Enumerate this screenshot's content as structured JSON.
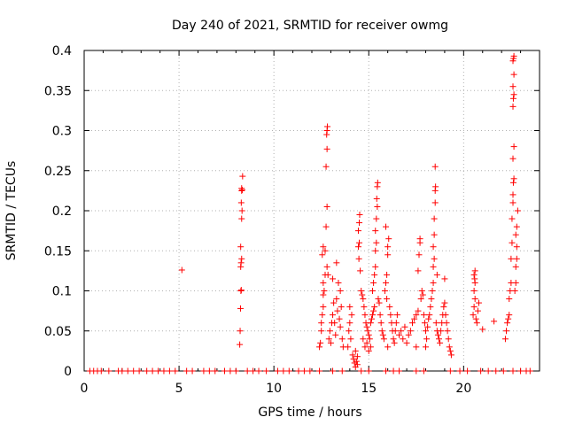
{
  "chart_data": {
    "type": "scatter",
    "title": "Day 240 of 2021, SRMTID for receiver owmg",
    "xlabel": "GPS time / hours",
    "ylabel": "SRMTID / TECUs",
    "xlim": [
      0,
      24
    ],
    "ylim": [
      0,
      0.4
    ],
    "xticks": [
      0,
      5,
      10,
      15,
      20
    ],
    "xtick_labels": [
      "0",
      "5",
      "10",
      "15",
      "20"
    ],
    "yticks": [
      0,
      0.05,
      0.1,
      0.15,
      0.2,
      0.25,
      0.3,
      0.35,
      0.4
    ],
    "ytick_labels": [
      "0",
      "0.05",
      "0.1",
      "0.15",
      "0.2",
      "0.25",
      "0.3",
      "0.35",
      "0.4"
    ],
    "grid": true,
    "marker": "+",
    "marker_color": "#ff0000",
    "series": [
      {
        "name": "owmg",
        "points": [
          [
            0.3,
            0
          ],
          [
            0.5,
            0
          ],
          [
            0.7,
            0
          ],
          [
            0.9,
            0
          ],
          [
            1.3,
            0
          ],
          [
            1.8,
            0
          ],
          [
            2.0,
            0
          ],
          [
            2.3,
            0
          ],
          [
            2.6,
            0
          ],
          [
            2.9,
            0
          ],
          [
            3.3,
            0
          ],
          [
            3.6,
            0
          ],
          [
            3.9,
            0
          ],
          [
            4.2,
            0
          ],
          [
            4.5,
            0
          ],
          [
            4.8,
            0
          ],
          [
            5.4,
            0
          ],
          [
            5.7,
            0
          ],
          [
            6.3,
            0
          ],
          [
            6.6,
            0
          ],
          [
            6.9,
            0
          ],
          [
            7.4,
            0
          ],
          [
            7.7,
            0
          ],
          [
            8.0,
            0
          ],
          [
            8.6,
            0
          ],
          [
            8.9,
            0
          ],
          [
            9.2,
            0
          ],
          [
            9.6,
            0
          ],
          [
            10.2,
            0
          ],
          [
            10.5,
            0
          ],
          [
            10.8,
            0
          ],
          [
            11.3,
            0
          ],
          [
            11.6,
            0
          ],
          [
            11.9,
            0
          ],
          [
            12.4,
            0
          ],
          [
            13.1,
            0
          ],
          [
            13.6,
            0
          ],
          [
            14.6,
            0
          ],
          [
            15.0,
            0
          ],
          [
            15.9,
            0
          ],
          [
            16.3,
            0
          ],
          [
            16.6,
            0
          ],
          [
            17.5,
            0
          ],
          [
            17.9,
            0
          ],
          [
            19.3,
            0
          ],
          [
            19.8,
            0
          ],
          [
            20.2,
            0
          ],
          [
            20.9,
            0
          ],
          [
            21.3,
            0
          ],
          [
            21.7,
            0
          ],
          [
            22.1,
            0
          ],
          [
            22.6,
            0
          ],
          [
            23.0,
            0
          ],
          [
            23.3,
            0
          ],
          [
            23.5,
            0
          ],
          [
            5.15,
            0.126
          ],
          [
            8.2,
            0.033
          ],
          [
            8.22,
            0.05
          ],
          [
            8.24,
            0.078
          ],
          [
            8.26,
            0.1
          ],
          [
            8.28,
            0.101
          ],
          [
            8.25,
            0.13
          ],
          [
            8.27,
            0.135
          ],
          [
            8.3,
            0.14
          ],
          [
            8.25,
            0.155
          ],
          [
            8.3,
            0.19
          ],
          [
            8.32,
            0.2
          ],
          [
            8.28,
            0.21
          ],
          [
            8.3,
            0.225
          ],
          [
            8.33,
            0.226
          ],
          [
            8.3,
            0.228
          ],
          [
            8.35,
            0.243
          ],
          [
            12.4,
            0.03
          ],
          [
            12.45,
            0.035
          ],
          [
            12.5,
            0.05
          ],
          [
            12.5,
            0.06
          ],
          [
            12.55,
            0.07
          ],
          [
            12.6,
            0.08
          ],
          [
            12.6,
            0.095
          ],
          [
            12.65,
            0.1
          ],
          [
            12.6,
            0.11
          ],
          [
            12.7,
            0.12
          ],
          [
            12.55,
            0.145
          ],
          [
            12.6,
            0.155
          ],
          [
            12.7,
            0.15
          ],
          [
            12.8,
            0.13
          ],
          [
            12.85,
            0.12
          ],
          [
            12.75,
            0.18
          ],
          [
            12.8,
            0.205
          ],
          [
            12.75,
            0.255
          ],
          [
            12.8,
            0.277
          ],
          [
            12.78,
            0.295
          ],
          [
            12.8,
            0.3
          ],
          [
            12.82,
            0.305
          ],
          [
            12.9,
            0.04
          ],
          [
            12.95,
            0.05
          ],
          [
            13.0,
            0.035
          ],
          [
            13.05,
            0.06
          ],
          [
            13.1,
            0.07
          ],
          [
            13.15,
            0.085
          ],
          [
            13.2,
            0.06
          ],
          [
            13.25,
            0.045
          ],
          [
            13.3,
            0.09
          ],
          [
            13.35,
            0.075
          ],
          [
            13.4,
            0.11
          ],
          [
            13.45,
            0.065
          ],
          [
            13.5,
            0.055
          ],
          [
            13.5,
            0.1
          ],
          [
            13.55,
            0.08
          ],
          [
            13.6,
            0.04
          ],
          [
            13.65,
            0.03
          ],
          [
            13.1,
            0.115
          ],
          [
            13.3,
            0.135
          ],
          [
            13.9,
            0.03
          ],
          [
            13.95,
            0.05
          ],
          [
            14.0,
            0.06
          ],
          [
            14.05,
            0.04
          ],
          [
            14.1,
            0.07
          ],
          [
            14.0,
            0.08
          ],
          [
            14.15,
            0.02
          ],
          [
            14.2,
            0.015
          ],
          [
            14.25,
            0.01
          ],
          [
            14.3,
            0.005
          ],
          [
            14.35,
            0.012
          ],
          [
            14.3,
            0.025
          ],
          [
            14.4,
            0.018
          ],
          [
            14.4,
            0.008
          ],
          [
            14.45,
            0.155
          ],
          [
            14.5,
            0.16
          ],
          [
            14.45,
            0.175
          ],
          [
            14.5,
            0.185
          ],
          [
            14.52,
            0.195
          ],
          [
            14.48,
            0.14
          ],
          [
            14.55,
            0.125
          ],
          [
            14.6,
            0.1
          ],
          [
            14.65,
            0.095
          ],
          [
            14.7,
            0.09
          ],
          [
            14.75,
            0.08
          ],
          [
            14.8,
            0.07
          ],
          [
            14.85,
            0.06
          ],
          [
            14.9,
            0.055
          ],
          [
            14.95,
            0.05
          ],
          [
            15.0,
            0.045
          ],
          [
            15.05,
            0.04
          ],
          [
            15.1,
            0.06
          ],
          [
            15.15,
            0.065
          ],
          [
            15.2,
            0.07
          ],
          [
            15.25,
            0.075
          ],
          [
            15.3,
            0.08
          ],
          [
            14.7,
            0.04
          ],
          [
            14.8,
            0.03
          ],
          [
            14.9,
            0.035
          ],
          [
            15.0,
            0.025
          ],
          [
            15.1,
            0.03
          ],
          [
            15.2,
            0.1
          ],
          [
            15.25,
            0.11
          ],
          [
            15.3,
            0.12
          ],
          [
            15.35,
            0.13
          ],
          [
            15.35,
            0.15
          ],
          [
            15.4,
            0.16
          ],
          [
            15.35,
            0.175
          ],
          [
            15.4,
            0.19
          ],
          [
            15.45,
            0.205
          ],
          [
            15.42,
            0.215
          ],
          [
            15.45,
            0.23
          ],
          [
            15.47,
            0.235
          ],
          [
            15.5,
            0.09
          ],
          [
            15.55,
            0.085
          ],
          [
            15.6,
            0.07
          ],
          [
            15.65,
            0.06
          ],
          [
            15.7,
            0.05
          ],
          [
            15.75,
            0.045
          ],
          [
            15.8,
            0.04
          ],
          [
            15.85,
            0.1
          ],
          [
            15.9,
            0.11
          ],
          [
            15.95,
            0.12
          ],
          [
            16.0,
            0.145
          ],
          [
            16.0,
            0.155
          ],
          [
            16.05,
            0.165
          ],
          [
            15.9,
            0.18
          ],
          [
            15.95,
            0.09
          ],
          [
            16.1,
            0.08
          ],
          [
            16.15,
            0.07
          ],
          [
            16.2,
            0.06
          ],
          [
            16.25,
            0.05
          ],
          [
            16.3,
            0.04
          ],
          [
            16.35,
            0.035
          ],
          [
            16.4,
            0.05
          ],
          [
            16.45,
            0.06
          ],
          [
            16.5,
            0.07
          ],
          [
            16.0,
            0.03
          ],
          [
            16.6,
            0.045
          ],
          [
            16.7,
            0.05
          ],
          [
            16.8,
            0.04
          ],
          [
            16.9,
            0.055
          ],
          [
            17.0,
            0.035
          ],
          [
            17.1,
            0.045
          ],
          [
            17.2,
            0.05
          ],
          [
            17.3,
            0.06
          ],
          [
            17.4,
            0.065
          ],
          [
            17.5,
            0.07
          ],
          [
            17.6,
            0.075
          ],
          [
            17.6,
            0.125
          ],
          [
            17.65,
            0.145
          ],
          [
            17.7,
            0.16
          ],
          [
            17.7,
            0.165
          ],
          [
            17.75,
            0.09
          ],
          [
            17.8,
            0.1
          ],
          [
            17.85,
            0.095
          ],
          [
            17.9,
            0.07
          ],
          [
            17.95,
            0.06
          ],
          [
            18.0,
            0.05
          ],
          [
            18.05,
            0.04
          ],
          [
            18.1,
            0.055
          ],
          [
            18.15,
            0.065
          ],
          [
            18.2,
            0.07
          ],
          [
            18.25,
            0.08
          ],
          [
            18.3,
            0.09
          ],
          [
            18.35,
            0.1
          ],
          [
            18.4,
            0.11
          ],
          [
            18.4,
            0.13
          ],
          [
            18.45,
            0.14
          ],
          [
            18.4,
            0.155
          ],
          [
            18.45,
            0.17
          ],
          [
            18.45,
            0.19
          ],
          [
            18.5,
            0.21
          ],
          [
            18.5,
            0.225
          ],
          [
            18.52,
            0.23
          ],
          [
            18.5,
            0.255
          ],
          [
            18.55,
            0.06
          ],
          [
            18.6,
            0.05
          ],
          [
            18.65,
            0.045
          ],
          [
            18.7,
            0.04
          ],
          [
            18.75,
            0.035
          ],
          [
            18.8,
            0.05
          ],
          [
            18.85,
            0.06
          ],
          [
            18.9,
            0.07
          ],
          [
            18.95,
            0.08
          ],
          [
            19.0,
            0.085
          ],
          [
            19.05,
            0.07
          ],
          [
            19.1,
            0.06
          ],
          [
            19.15,
            0.05
          ],
          [
            19.2,
            0.04
          ],
          [
            19.25,
            0.03
          ],
          [
            19.3,
            0.025
          ],
          [
            19.35,
            0.02
          ],
          [
            19.0,
            0.115
          ],
          [
            18.6,
            0.12
          ],
          [
            18.0,
            0.03
          ],
          [
            17.5,
            0.03
          ],
          [
            20.5,
            0.07
          ],
          [
            20.55,
            0.08
          ],
          [
            20.6,
            0.09
          ],
          [
            20.55,
            0.1
          ],
          [
            20.6,
            0.11
          ],
          [
            20.58,
            0.115
          ],
          [
            20.55,
            0.12
          ],
          [
            20.6,
            0.125
          ],
          [
            20.65,
            0.065
          ],
          [
            20.7,
            0.06
          ],
          [
            20.75,
            0.075
          ],
          [
            20.8,
            0.085
          ],
          [
            21.0,
            0.052
          ],
          [
            21.6,
            0.062
          ],
          [
            22.2,
            0.04
          ],
          [
            22.25,
            0.05
          ],
          [
            22.3,
            0.06
          ],
          [
            22.35,
            0.065
          ],
          [
            22.4,
            0.07
          ],
          [
            22.4,
            0.09
          ],
          [
            22.45,
            0.1
          ],
          [
            22.5,
            0.11
          ],
          [
            22.5,
            0.14
          ],
          [
            22.55,
            0.16
          ],
          [
            22.55,
            0.19
          ],
          [
            22.6,
            0.21
          ],
          [
            22.6,
            0.22
          ],
          [
            22.62,
            0.235
          ],
          [
            22.65,
            0.24
          ],
          [
            22.6,
            0.265
          ],
          [
            22.65,
            0.28
          ],
          [
            22.6,
            0.33
          ],
          [
            22.62,
            0.34
          ],
          [
            22.65,
            0.345
          ],
          [
            22.6,
            0.355
          ],
          [
            22.65,
            0.37
          ],
          [
            22.6,
            0.387
          ],
          [
            22.63,
            0.39
          ],
          [
            22.65,
            0.393
          ],
          [
            22.7,
            0.1
          ],
          [
            22.75,
            0.11
          ],
          [
            22.75,
            0.13
          ],
          [
            22.8,
            0.14
          ],
          [
            22.8,
            0.155
          ],
          [
            22.75,
            0.17
          ],
          [
            22.8,
            0.18
          ],
          [
            22.85,
            0.2
          ]
        ]
      }
    ]
  }
}
